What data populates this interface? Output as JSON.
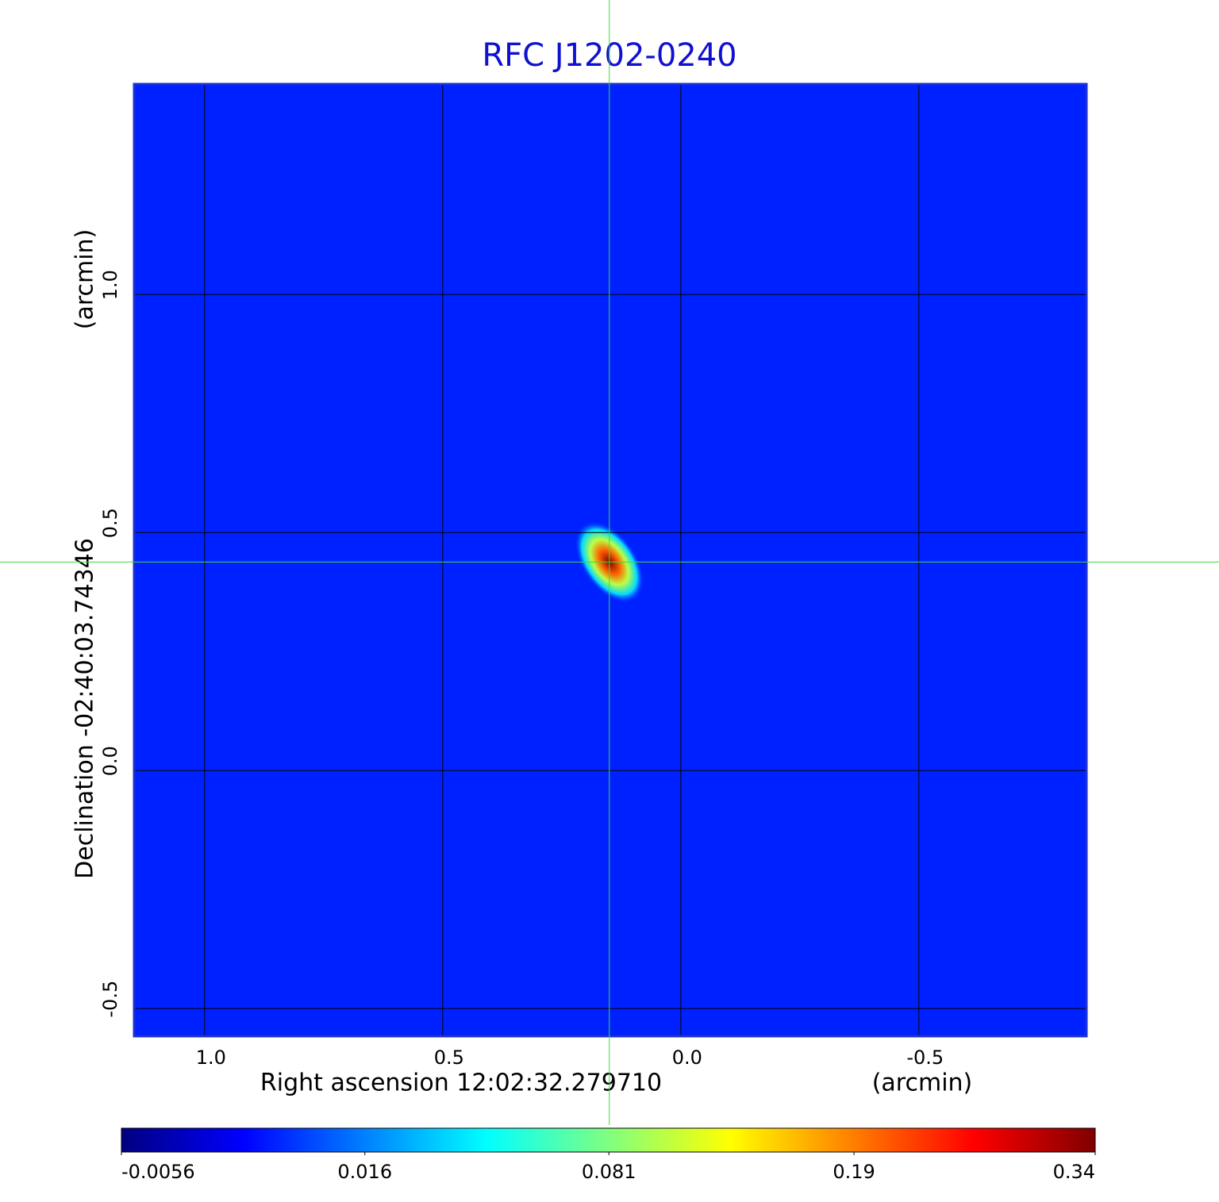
{
  "chart_data": {
    "type": "image",
    "title": "RFC J1202-0240",
    "x_label": "Right ascension  12:02:32.279710",
    "x_unit": "(arcmin)",
    "y_label": "Declination  -02:40:03.74346",
    "y_unit": "(arcmin)",
    "xlim": [
      1.148,
      -0.852
    ],
    "ylim": [
      -0.558,
      1.442
    ],
    "xticks": [
      {
        "value": 1,
        "label": "1.0"
      },
      0.5,
      {
        "value": 0,
        "label": "0.0"
      },
      -0.5
    ],
    "yticks": [
      -0.5,
      {
        "value": 0,
        "label": "0.0"
      },
      0.5,
      {
        "value": 1,
        "label": "1.0"
      }
    ],
    "grid": true,
    "background_value": 0.003,
    "source": {
      "x": 0.15,
      "y": 0.438,
      "value": 0.34
    },
    "colorbar": {
      "scale": "sqrt",
      "lim": [
        -0.0056,
        0.34
      ],
      "ticks": [
        -0.0056,
        0.016,
        0.081,
        0.19,
        0.34
      ],
      "colormap": [
        "#000080",
        "#0000ff",
        "#00ffff",
        "#ffff00",
        "#ff0000",
        "#800000"
      ]
    }
  }
}
